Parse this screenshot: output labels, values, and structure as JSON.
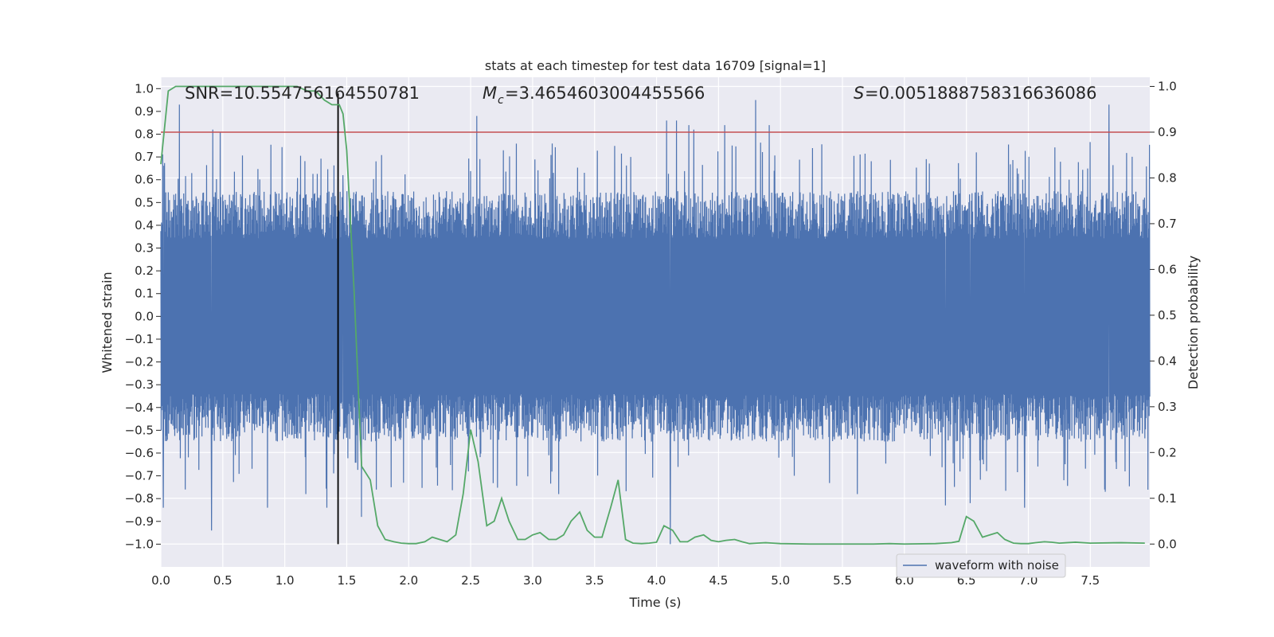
{
  "chart_data": {
    "type": "line",
    "title": "stats at each timestep for test data 16709 [signal=1]",
    "xlabel": "Time (s)",
    "ylabel_left": "Whitened strain",
    "ylabel_right": "Detection probability",
    "xlim": [
      0.0,
      7.98
    ],
    "ylim_left": [
      -1.1,
      1.05
    ],
    "ylim_right": [
      -0.05,
      1.02
    ],
    "x_ticks": [
      0.0,
      0.5,
      1.0,
      1.5,
      2.0,
      2.5,
      3.0,
      3.5,
      4.0,
      4.5,
      5.0,
      5.5,
      6.0,
      6.5,
      7.0,
      7.5
    ],
    "x_tick_labels": [
      "0.0",
      "0.5",
      "1.0",
      "1.5",
      "2.0",
      "2.5",
      "3.0",
      "3.5",
      "4.0",
      "4.5",
      "5.0",
      "5.5",
      "6.0",
      "6.5",
      "7.0",
      "7.5"
    ],
    "y_left_ticks": [
      1.0,
      0.9,
      0.8,
      0.7,
      0.6,
      0.5,
      0.4,
      0.3,
      0.2,
      0.1,
      0.0,
      -0.1,
      -0.2,
      -0.3,
      -0.4,
      -0.5,
      -0.6,
      -0.7,
      -0.8,
      -0.9,
      -1.0
    ],
    "y_left_tick_labels": [
      "1.0",
      "0.9",
      "0.8",
      "0.7",
      "0.6",
      "0.5",
      "0.4",
      "0.3",
      "0.2",
      "0.1",
      "0.0",
      "-0.1",
      "-0.2",
      "-0.3",
      "-0.4",
      "-0.5",
      "-0.6",
      "-0.7",
      "-0.8",
      "-0.9",
      "-1.0"
    ],
    "y_right_ticks": [
      1.0,
      0.9,
      0.8,
      0.7,
      0.6,
      0.5,
      0.4,
      0.3,
      0.2,
      0.1,
      0.0
    ],
    "y_right_tick_labels": [
      "1.0",
      "0.9",
      "0.8",
      "0.7",
      "0.6",
      "0.5",
      "0.4",
      "0.3",
      "0.2",
      "0.1",
      "0.0"
    ],
    "annotations": [
      {
        "prefix": "SNR",
        "text": "SNR=10.554756164550781",
        "value": "10.554756164550781"
      },
      {
        "prefix": "M_c",
        "text": "=3.4654603004455566",
        "value": "3.4654603004455566"
      },
      {
        "prefix": "S",
        "text": "=0.0051888758316636086",
        "value": "0.0051888758316636086"
      }
    ],
    "merger_time": 1.43,
    "threshold": 0.9,
    "series": [
      {
        "name": "waveform with noise",
        "axis": "left",
        "color": "#4c72b0",
        "kind": "noise-waveform",
        "envelope": [
          0.55,
          -0.55
        ],
        "spikes": [
          {
            "x": 0.02,
            "y": -0.84
          },
          {
            "x": 0.15,
            "y": 0.93
          },
          {
            "x": 0.41,
            "y": -0.94
          },
          {
            "x": 0.42,
            "y": 0.82
          },
          {
            "x": 0.48,
            "y": 0.81
          },
          {
            "x": 0.86,
            "y": -0.84
          },
          {
            "x": 1.17,
            "y": -0.78
          },
          {
            "x": 1.34,
            "y": -0.84
          },
          {
            "x": 1.47,
            "y": 0.62
          },
          {
            "x": 1.62,
            "y": -0.88
          },
          {
            "x": 2.55,
            "y": 0.88
          },
          {
            "x": 3.21,
            "y": -0.78
          },
          {
            "x": 4.08,
            "y": 0.86
          },
          {
            "x": 4.11,
            "y": -1.0
          },
          {
            "x": 4.16,
            "y": 0.86
          },
          {
            "x": 4.26,
            "y": 0.84
          },
          {
            "x": 4.3,
            "y": 0.82
          },
          {
            "x": 4.55,
            "y": 0.84
          },
          {
            "x": 4.8,
            "y": 0.95
          },
          {
            "x": 4.91,
            "y": 0.84
          },
          {
            "x": 5.62,
            "y": -0.78
          },
          {
            "x": 6.33,
            "y": -0.83
          },
          {
            "x": 6.53,
            "y": -0.82
          },
          {
            "x": 6.97,
            "y": -0.84
          },
          {
            "x": 7.65,
            "y": 0.93
          },
          {
            "x": 7.71,
            "y": -0.67
          }
        ]
      },
      {
        "name": "detection probability",
        "axis": "right",
        "color": "#55a868",
        "x": [
          0.0,
          0.06,
          0.12,
          0.18,
          0.25,
          0.32,
          0.4,
          0.5,
          0.6,
          0.7,
          0.8,
          0.9,
          1.0,
          1.1,
          1.18,
          1.25,
          1.32,
          1.38,
          1.44,
          1.47,
          1.5,
          1.56,
          1.62,
          1.69,
          1.75,
          1.81,
          1.88,
          1.94,
          2.0,
          2.06,
          2.13,
          2.19,
          2.25,
          2.31,
          2.38,
          2.44,
          2.5,
          2.56,
          2.63,
          2.69,
          2.75,
          2.81,
          2.88,
          2.94,
          3.0,
          3.06,
          3.13,
          3.19,
          3.25,
          3.31,
          3.38,
          3.44,
          3.5,
          3.56,
          3.63,
          3.69,
          3.75,
          3.81,
          3.88,
          3.94,
          4.0,
          4.06,
          4.13,
          4.19,
          4.25,
          4.31,
          4.38,
          4.44,
          4.5,
          4.56,
          4.63,
          4.69,
          4.75,
          4.81,
          4.88,
          4.94,
          5.0,
          5.25,
          5.5,
          5.75,
          5.88,
          6.0,
          6.25,
          6.38,
          6.44,
          6.5,
          6.56,
          6.63,
          6.69,
          6.75,
          6.81,
          6.88,
          6.94,
          7.0,
          7.06,
          7.13,
          7.19,
          7.25,
          7.31,
          7.38,
          7.5,
          7.75,
          7.94
        ],
        "y": [
          0.83,
          0.99,
          1.0,
          1.0,
          1.0,
          1.0,
          1.0,
          1.0,
          1.0,
          1.0,
          1.0,
          1.0,
          1.0,
          1.0,
          0.99,
          0.99,
          0.97,
          0.96,
          0.96,
          0.94,
          0.86,
          0.55,
          0.17,
          0.14,
          0.04,
          0.01,
          0.005,
          0.002,
          0.001,
          0.001,
          0.005,
          0.015,
          0.01,
          0.005,
          0.02,
          0.11,
          0.25,
          0.18,
          0.04,
          0.05,
          0.1,
          0.05,
          0.01,
          0.01,
          0.02,
          0.025,
          0.01,
          0.01,
          0.02,
          0.05,
          0.07,
          0.03,
          0.015,
          0.015,
          0.08,
          0.14,
          0.01,
          0.002,
          0.001,
          0.002,
          0.004,
          0.04,
          0.03,
          0.005,
          0.005,
          0.015,
          0.02,
          0.008,
          0.005,
          0.008,
          0.01,
          0.005,
          0.001,
          0.002,
          0.003,
          0.002,
          0.001,
          0.0,
          0.0,
          0.0,
          0.001,
          0.0,
          0.001,
          0.003,
          0.006,
          0.06,
          0.05,
          0.015,
          0.02,
          0.025,
          0.01,
          0.002,
          0.001,
          0.001,
          0.003,
          0.005,
          0.004,
          0.002,
          0.003,
          0.004,
          0.002,
          0.003,
          0.002
        ]
      }
    ],
    "legend": {
      "placement": "bottom-right",
      "entries": [
        "waveform with noise"
      ]
    },
    "colors": {
      "background": "#eaeaf2",
      "grid": "#ffffff",
      "threshold": "#c44e52",
      "merger": "#000000"
    }
  }
}
